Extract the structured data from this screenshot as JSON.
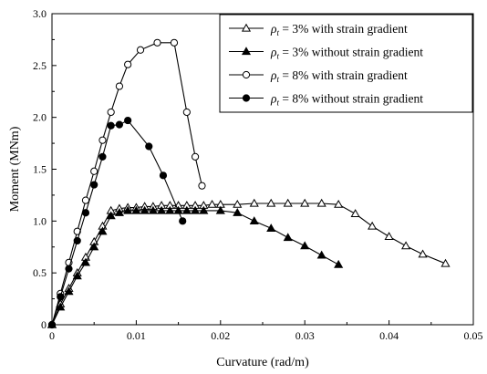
{
  "chart_data": {
    "type": "line",
    "xlabel": "Curvature (rad/m)",
    "ylabel": "Moment (MNm)",
    "xlim": [
      0,
      0.05
    ],
    "ylim": [
      0,
      3.0
    ],
    "x_ticks": [
      "0",
      "0.01",
      "0.02",
      "0.03",
      "0.04",
      "0.05"
    ],
    "y_ticks": [
      "0",
      "0.5",
      "1.0",
      "1.5",
      "2.0",
      "2.5",
      "3.0"
    ],
    "grid": false,
    "legend_position": "top-right",
    "series": [
      {
        "name": "ρt = 3% with strain gradient",
        "rho_symbol": "ρ",
        "rho_subscript": "t",
        "label_rest": " = 3% with strain gradient",
        "marker": "open-triangle",
        "color": "#000000",
        "points": [
          [
            0,
            0
          ],
          [
            0.001,
            0.2
          ],
          [
            0.002,
            0.35
          ],
          [
            0.003,
            0.5
          ],
          [
            0.004,
            0.65
          ],
          [
            0.005,
            0.8
          ],
          [
            0.006,
            0.95
          ],
          [
            0.007,
            1.1
          ],
          [
            0.008,
            1.12
          ],
          [
            0.009,
            1.13
          ],
          [
            0.01,
            1.13
          ],
          [
            0.011,
            1.14
          ],
          [
            0.012,
            1.14
          ],
          [
            0.013,
            1.15
          ],
          [
            0.014,
            1.15
          ],
          [
            0.015,
            1.15
          ],
          [
            0.016,
            1.15
          ],
          [
            0.017,
            1.15
          ],
          [
            0.018,
            1.15
          ],
          [
            0.019,
            1.16
          ],
          [
            0.02,
            1.16
          ],
          [
            0.022,
            1.16
          ],
          [
            0.024,
            1.17
          ],
          [
            0.026,
            1.17
          ],
          [
            0.028,
            1.17
          ],
          [
            0.03,
            1.17
          ],
          [
            0.032,
            1.17
          ],
          [
            0.034,
            1.16
          ],
          [
            0.036,
            1.07
          ],
          [
            0.038,
            0.95
          ],
          [
            0.04,
            0.85
          ],
          [
            0.042,
            0.76
          ],
          [
            0.044,
            0.68
          ],
          [
            0.0467,
            0.59
          ]
        ]
      },
      {
        "name": "ρt = 3% without strain gradient",
        "rho_symbol": "ρ",
        "rho_subscript": "t",
        "label_rest": " = 3% without strain gradient",
        "marker": "filled-triangle",
        "color": "#000000",
        "points": [
          [
            0,
            0
          ],
          [
            0.001,
            0.17
          ],
          [
            0.002,
            0.32
          ],
          [
            0.003,
            0.47
          ],
          [
            0.004,
            0.6
          ],
          [
            0.005,
            0.75
          ],
          [
            0.006,
            0.9
          ],
          [
            0.007,
            1.05
          ],
          [
            0.008,
            1.08
          ],
          [
            0.009,
            1.1
          ],
          [
            0.01,
            1.1
          ],
          [
            0.011,
            1.1
          ],
          [
            0.012,
            1.1
          ],
          [
            0.013,
            1.1
          ],
          [
            0.014,
            1.1
          ],
          [
            0.015,
            1.1
          ],
          [
            0.016,
            1.1
          ],
          [
            0.017,
            1.1
          ],
          [
            0.018,
            1.1
          ],
          [
            0.02,
            1.1
          ],
          [
            0.022,
            1.08
          ],
          [
            0.024,
            1.0
          ],
          [
            0.026,
            0.93
          ],
          [
            0.028,
            0.84
          ],
          [
            0.03,
            0.76
          ],
          [
            0.032,
            0.67
          ],
          [
            0.034,
            0.58
          ]
        ]
      },
      {
        "name": "ρt = 8% with strain gradient",
        "rho_symbol": "ρ",
        "rho_subscript": "t",
        "label_rest": " = 8% with strain gradient",
        "marker": "open-circle",
        "color": "#000000",
        "points": [
          [
            0,
            0
          ],
          [
            0.001,
            0.3
          ],
          [
            0.002,
            0.6
          ],
          [
            0.003,
            0.9
          ],
          [
            0.004,
            1.2
          ],
          [
            0.005,
            1.48
          ],
          [
            0.006,
            1.78
          ],
          [
            0.007,
            2.05
          ],
          [
            0.008,
            2.3
          ],
          [
            0.009,
            2.51
          ],
          [
            0.0105,
            2.65
          ],
          [
            0.0125,
            2.72
          ],
          [
            0.0145,
            2.72
          ],
          [
            0.016,
            2.05
          ],
          [
            0.017,
            1.62
          ],
          [
            0.0178,
            1.34
          ]
        ]
      },
      {
        "name": "ρt = 8% without strain gradient",
        "rho_symbol": "ρ",
        "rho_subscript": "t",
        "label_rest": " = 8% without strain gradient",
        "marker": "filled-circle",
        "color": "#000000",
        "points": [
          [
            0,
            0
          ],
          [
            0.001,
            0.27
          ],
          [
            0.002,
            0.54
          ],
          [
            0.003,
            0.81
          ],
          [
            0.004,
            1.08
          ],
          [
            0.005,
            1.35
          ],
          [
            0.006,
            1.62
          ],
          [
            0.007,
            1.92
          ],
          [
            0.008,
            1.93
          ],
          [
            0.009,
            1.97
          ],
          [
            0.0115,
            1.72
          ],
          [
            0.0132,
            1.44
          ],
          [
            0.0155,
            1.0
          ]
        ]
      }
    ]
  }
}
